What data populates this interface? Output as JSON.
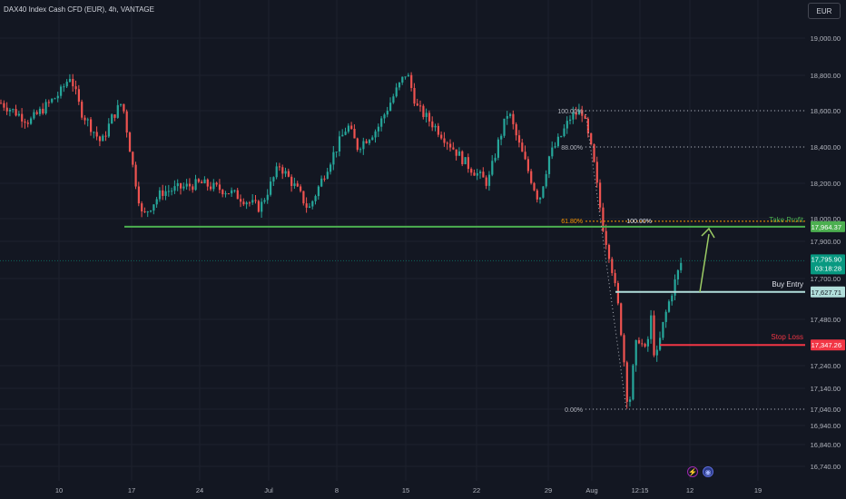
{
  "header": {
    "title": "DAX40 Index Cash CFD (EUR), 4h, VANTAGE",
    "currency_button": "EUR"
  },
  "colors": {
    "background": "#131722",
    "up_candle": "#26a69a",
    "down_candle": "#ef5350",
    "take_profit": "#4caf50",
    "buy_entry": "#b2dfdb",
    "stop_loss": "#f23645",
    "fib_level": "#ff9800",
    "last_price": "#089981"
  },
  "chart_data": {
    "type": "candlestick",
    "symbol": "DAX40 Index Cash CFD (EUR)",
    "timeframe": "4h",
    "yticks": [
      19000,
      18800,
      18600,
      18400,
      18200,
      18000,
      17900,
      17700,
      17480,
      17240,
      17140,
      17040,
      16940,
      16840,
      16740
    ],
    "ytick_labels": [
      "19,000.00",
      "18,800.00",
      "18,600.00",
      "18,400.00",
      "18,200.00",
      "18,000.00",
      "17,900.00",
      "17,700.00",
      "17,480.00",
      "17,240.00",
      "17,140.00",
      "17,040.00",
      "16,940.00",
      "16,840.00",
      "16,740.00"
    ],
    "xtick_labels": [
      "10",
      "17",
      "24",
      "Jul",
      "8",
      "15",
      "22",
      "29",
      "Aug",
      "12:15",
      "12",
      "19"
    ],
    "path": [
      {
        "date": "Jun 6",
        "price": 18650
      },
      {
        "date": "Jun 8",
        "price": 18540
      },
      {
        "date": "Jun 10",
        "price": 18700
      },
      {
        "date": "Jun 11",
        "price": 18800
      },
      {
        "date": "Jun 12",
        "price": 18600
      },
      {
        "date": "Jun 14",
        "price": 18420
      },
      {
        "date": "Jun 15",
        "price": 18560
      },
      {
        "date": "Jun 16",
        "price": 18650
      },
      {
        "date": "Jun 17",
        "price": 18300
      },
      {
        "date": "Jun 18",
        "price": 18010
      },
      {
        "date": "Jun 20",
        "price": 18150
      },
      {
        "date": "Jun 24",
        "price": 18200
      },
      {
        "date": "Jun 27",
        "price": 18150
      },
      {
        "date": "Jun 30",
        "price": 18060
      },
      {
        "date": "Jul 2",
        "price": 18300
      },
      {
        "date": "Jul 4",
        "price": 18150
      },
      {
        "date": "Jul 5",
        "price": 18050
      },
      {
        "date": "Jul 7",
        "price": 18300
      },
      {
        "date": "Jul 9",
        "price": 18520
      },
      {
        "date": "Jul 10",
        "price": 18400
      },
      {
        "date": "Jul 12",
        "price": 18500
      },
      {
        "date": "Jul 14",
        "price": 18720
      },
      {
        "date": "Jul 15",
        "price": 18820
      },
      {
        "date": "Jul 16",
        "price": 18620
      },
      {
        "date": "Jul 18",
        "price": 18500
      },
      {
        "date": "Jul 21",
        "price": 18300
      },
      {
        "date": "Jul 23",
        "price": 18200
      },
      {
        "date": "Jul 24",
        "price": 18420
      },
      {
        "date": "Jul 25",
        "price": 18600
      },
      {
        "date": "Jul 26",
        "price": 18420
      },
      {
        "date": "Jul 28",
        "price": 18100
      },
      {
        "date": "Jul 29",
        "price": 18350
      },
      {
        "date": "Jul 30",
        "price": 18450
      },
      {
        "date": "Jul 31",
        "price": 18570
      },
      {
        "date": "Aug 1",
        "price": 18600
      },
      {
        "date": "Aug 2",
        "price": 18350
      },
      {
        "date": "Aug 3",
        "price": 18000
      },
      {
        "date": "Aug 4",
        "price": 17800
      },
      {
        "date": "Aug 5",
        "price": 17500
      },
      {
        "date": "Aug 6",
        "price": 17030
      },
      {
        "date": "Aug 7",
        "price": 17400
      },
      {
        "date": "Aug 8",
        "price": 17300
      },
      {
        "date": "Aug 8.5",
        "price": 17500
      },
      {
        "date": "Aug 9",
        "price": 17250
      },
      {
        "date": "Aug 10",
        "price": 17480
      },
      {
        "date": "Aug 11",
        "price": 17650
      },
      {
        "date": "Aug 12",
        "price": 17800
      }
    ],
    "annotations": {
      "take_profit": {
        "label": "Take Profit",
        "price": 17964.37,
        "price_label": "17,964.37"
      },
      "buy_entry": {
        "label": "Buy Entry",
        "price": 17627.71,
        "price_label": "17,627.71"
      },
      "stop_loss": {
        "label": "Stop Loss",
        "price": 17347.26,
        "price_label": "17,347.26"
      },
      "last_price": {
        "price": 17795.9,
        "price_label": "17,795.90",
        "countdown": "03:18:28"
      },
      "fib_right": [
        {
          "label": "100.00%",
          "price": 18600
        },
        {
          "label": "88.00%",
          "price": 18400
        },
        {
          "label": "0.00%",
          "price": 17040
        }
      ],
      "fib_left": [
        {
          "label": "61.80%",
          "price": 17964.37
        },
        {
          "label": "100.00%",
          "price": 17964.37
        }
      ]
    }
  }
}
